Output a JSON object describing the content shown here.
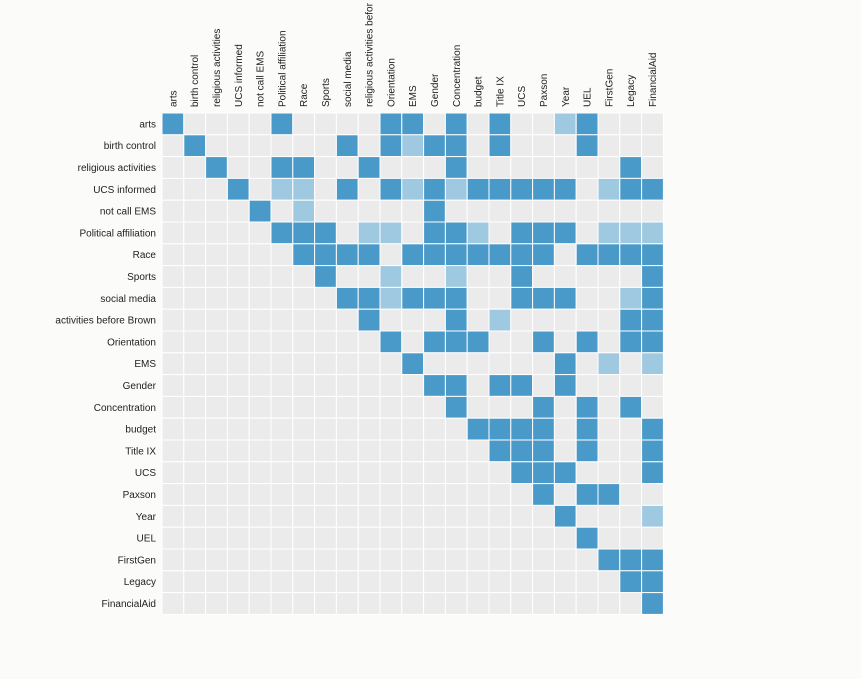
{
  "chart_data": {
    "type": "heatmap",
    "title": "",
    "variables": [
      "arts",
      "birth control",
      "religious activities",
      "UCS informed",
      "not call EMS",
      "Political affiliation",
      "Race",
      "Sports",
      "social media",
      "activities before Brown",
      "Orientation",
      "EMS",
      "Gender",
      "Concentration",
      "budget",
      "Title IX",
      "UCS",
      "Paxson",
      "Year",
      "UEL",
      "FirstGen",
      "Legacy",
      "FinancialAid"
    ],
    "column_labels": [
      "arts",
      "birth control",
      "religious activities",
      "UCS informed",
      "not call EMS",
      "Political affiliation",
      "Race",
      "Sports",
      "social media",
      "religious activities befor",
      "Orientation",
      "EMS",
      "Gender",
      "Concentration",
      "budget",
      "Title IX",
      "UCS",
      "Paxson",
      "Year",
      "UEL",
      "FirstGen",
      "Legacy",
      "FinancialAid"
    ],
    "value_levels": {
      "0": "none",
      "1": "weak",
      "2": "strong"
    },
    "colors": {
      "none": "#ebebeb",
      "weak": "#9fc9e0",
      "strong": "#4a9ac9",
      "grid": "#ffffff",
      "background": "#fbfbf9"
    },
    "matrix": [
      [
        2,
        0,
        0,
        0,
        0,
        2,
        0,
        0,
        0,
        0,
        2,
        2,
        0,
        2,
        0,
        2,
        0,
        0,
        1,
        2,
        0,
        0,
        0
      ],
      [
        0,
        2,
        0,
        0,
        0,
        0,
        0,
        0,
        2,
        0,
        2,
        1,
        2,
        2,
        0,
        2,
        0,
        0,
        0,
        2,
        0,
        0,
        0
      ],
      [
        0,
        0,
        2,
        0,
        0,
        2,
        2,
        0,
        0,
        2,
        0,
        0,
        0,
        2,
        0,
        0,
        0,
        0,
        0,
        0,
        0,
        2,
        0
      ],
      [
        0,
        0,
        0,
        2,
        0,
        1,
        1,
        0,
        2,
        0,
        2,
        1,
        2,
        1,
        2,
        2,
        2,
        2,
        2,
        0,
        1,
        2,
        2
      ],
      [
        0,
        0,
        0,
        0,
        2,
        0,
        1,
        0,
        0,
        0,
        0,
        0,
        2,
        0,
        0,
        0,
        0,
        0,
        0,
        0,
        0,
        0,
        0
      ],
      [
        0,
        0,
        0,
        0,
        0,
        2,
        2,
        2,
        0,
        1,
        1,
        0,
        2,
        2,
        1,
        0,
        2,
        2,
        2,
        0,
        1,
        1,
        1
      ],
      [
        0,
        0,
        0,
        0,
        0,
        0,
        2,
        2,
        2,
        2,
        0,
        2,
        2,
        2,
        2,
        2,
        2,
        2,
        0,
        2,
        2,
        2,
        2
      ],
      [
        0,
        0,
        0,
        0,
        0,
        0,
        0,
        2,
        0,
        0,
        1,
        0,
        0,
        1,
        0,
        0,
        2,
        0,
        0,
        0,
        0,
        0,
        2
      ],
      [
        0,
        0,
        0,
        0,
        0,
        0,
        0,
        0,
        2,
        2,
        1,
        2,
        2,
        2,
        0,
        0,
        2,
        2,
        2,
        0,
        0,
        1,
        2
      ],
      [
        0,
        0,
        0,
        0,
        0,
        0,
        0,
        0,
        0,
        2,
        0,
        0,
        0,
        2,
        0,
        1,
        0,
        0,
        0,
        0,
        0,
        2,
        2
      ],
      [
        0,
        0,
        0,
        0,
        0,
        0,
        0,
        0,
        0,
        0,
        2,
        0,
        2,
        2,
        2,
        0,
        0,
        2,
        0,
        2,
        0,
        2,
        2
      ],
      [
        0,
        0,
        0,
        0,
        0,
        0,
        0,
        0,
        0,
        0,
        0,
        2,
        0,
        0,
        0,
        0,
        0,
        0,
        2,
        0,
        1,
        0,
        1
      ],
      [
        0,
        0,
        0,
        0,
        0,
        0,
        0,
        0,
        0,
        0,
        0,
        0,
        2,
        2,
        0,
        2,
        2,
        0,
        2,
        0,
        0,
        0,
        0
      ],
      [
        0,
        0,
        0,
        0,
        0,
        0,
        0,
        0,
        0,
        0,
        0,
        0,
        0,
        2,
        0,
        0,
        0,
        2,
        0,
        2,
        0,
        2,
        0
      ],
      [
        0,
        0,
        0,
        0,
        0,
        0,
        0,
        0,
        0,
        0,
        0,
        0,
        0,
        0,
        2,
        2,
        2,
        2,
        0,
        2,
        0,
        0,
        2
      ],
      [
        0,
        0,
        0,
        0,
        0,
        0,
        0,
        0,
        0,
        0,
        0,
        0,
        0,
        0,
        0,
        2,
        2,
        2,
        0,
        2,
        0,
        0,
        2
      ],
      [
        0,
        0,
        0,
        0,
        0,
        0,
        0,
        0,
        0,
        0,
        0,
        0,
        0,
        0,
        0,
        0,
        2,
        2,
        2,
        0,
        0,
        0,
        2
      ],
      [
        0,
        0,
        0,
        0,
        0,
        0,
        0,
        0,
        0,
        0,
        0,
        0,
        0,
        0,
        0,
        0,
        0,
        2,
        0,
        2,
        2,
        0,
        0
      ],
      [
        0,
        0,
        0,
        0,
        0,
        0,
        0,
        0,
        0,
        0,
        0,
        0,
        0,
        0,
        0,
        0,
        0,
        0,
        2,
        0,
        0,
        0,
        1
      ],
      [
        0,
        0,
        0,
        0,
        0,
        0,
        0,
        0,
        0,
        0,
        0,
        0,
        0,
        0,
        0,
        0,
        0,
        0,
        0,
        2,
        0,
        0,
        0
      ],
      [
        0,
        0,
        0,
        0,
        0,
        0,
        0,
        0,
        0,
        0,
        0,
        0,
        0,
        0,
        0,
        0,
        0,
        0,
        0,
        0,
        2,
        2,
        2
      ],
      [
        0,
        0,
        0,
        0,
        0,
        0,
        0,
        0,
        0,
        0,
        0,
        0,
        0,
        0,
        0,
        0,
        0,
        0,
        0,
        0,
        0,
        2,
        2
      ],
      [
        0,
        0,
        0,
        0,
        0,
        0,
        0,
        0,
        0,
        0,
        0,
        0,
        0,
        0,
        0,
        0,
        0,
        0,
        0,
        0,
        0,
        0,
        2
      ]
    ]
  }
}
